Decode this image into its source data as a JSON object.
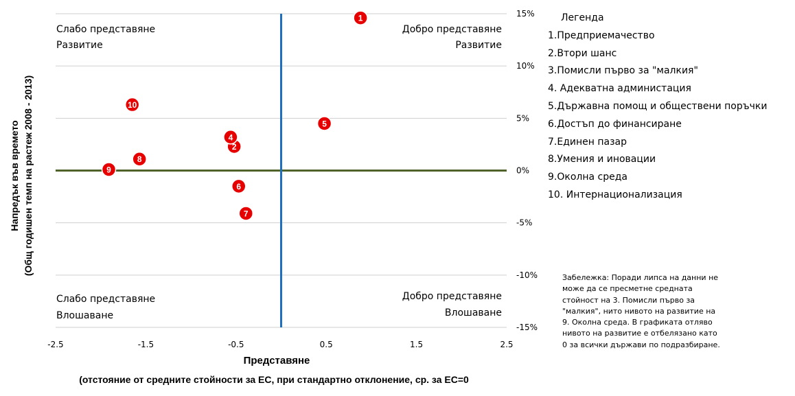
{
  "chart_data": {
    "type": "scatter",
    "xlabel": "Представяне",
    "xlabel_sub": "(отстояние от средните стойности за ЕС, при стандартно отклонение, ср. за ЕС=0",
    "ylabel": "Напредък във времето",
    "ylabel_sub": "(Общ годишен темп на растеж 2008 - 2013)",
    "xlim": [
      -2.5,
      2.5
    ],
    "ylim": [
      -15,
      15
    ],
    "x_ticks": [
      "-2.5",
      "-1.5",
      "-0.5",
      "0.5",
      "1.5",
      "2.5"
    ],
    "y_ticks": [
      "15%",
      "10%",
      "5%",
      "0%",
      "-5%",
      "-10%",
      "-15%"
    ],
    "reference_lines": {
      "vertical_x": 0,
      "vertical_color": "#1f6fbf",
      "horizontal_y": 0,
      "horizontal_color": "#4f6228"
    },
    "marker_color": "#e60000",
    "grid": "horizontal",
    "points": [
      {
        "label": "1",
        "x": 0.88,
        "y": 14.6
      },
      {
        "label": "2",
        "x": -0.52,
        "y": 2.3
      },
      {
        "label": "4",
        "x": -0.56,
        "y": 3.2
      },
      {
        "label": "5",
        "x": 0.48,
        "y": 4.5
      },
      {
        "label": "6",
        "x": -0.47,
        "y": -1.5
      },
      {
        "label": "7",
        "x": -0.39,
        "y": -4.1
      },
      {
        "label": "8",
        "x": -1.57,
        "y": 1.1
      },
      {
        "label": "9",
        "x": -1.91,
        "y": 0.1
      },
      {
        "label": "10",
        "x": -1.65,
        "y": 6.3
      }
    ],
    "quadrants": {
      "top_left": [
        "Слабо представяне",
        "Развитие"
      ],
      "top_right": [
        "Добро представяне",
        "Развитие"
      ],
      "bottom_left": [
        "Слабо представяне",
        "Влошаване"
      ],
      "bottom_right": [
        "Добро представяне",
        "Влошаване"
      ]
    },
    "legend": {
      "title": "Легенда",
      "items": [
        "1.Предприемачество",
        "2.Втори шанс",
        "3.Помисли първо за \"малкия\"",
        "4. Адекватна администация",
        "5.Държавна помощ и обществени поръчки",
        "6.Достъп до финансиране",
        "7.Единен пазар",
        "8.Умения и иновации",
        "9.Околна среда",
        "10. Интернационализация"
      ]
    },
    "note": "Забележка: Поради липса на данни не може да се пресметне средната стойност на 3. Помисли първо за \"малкия\", нито нивото на развитие на 9. Околна среда. В графиката отляво нивото на развитие е отбелязано като 0 за всички държави по подразбиране."
  }
}
